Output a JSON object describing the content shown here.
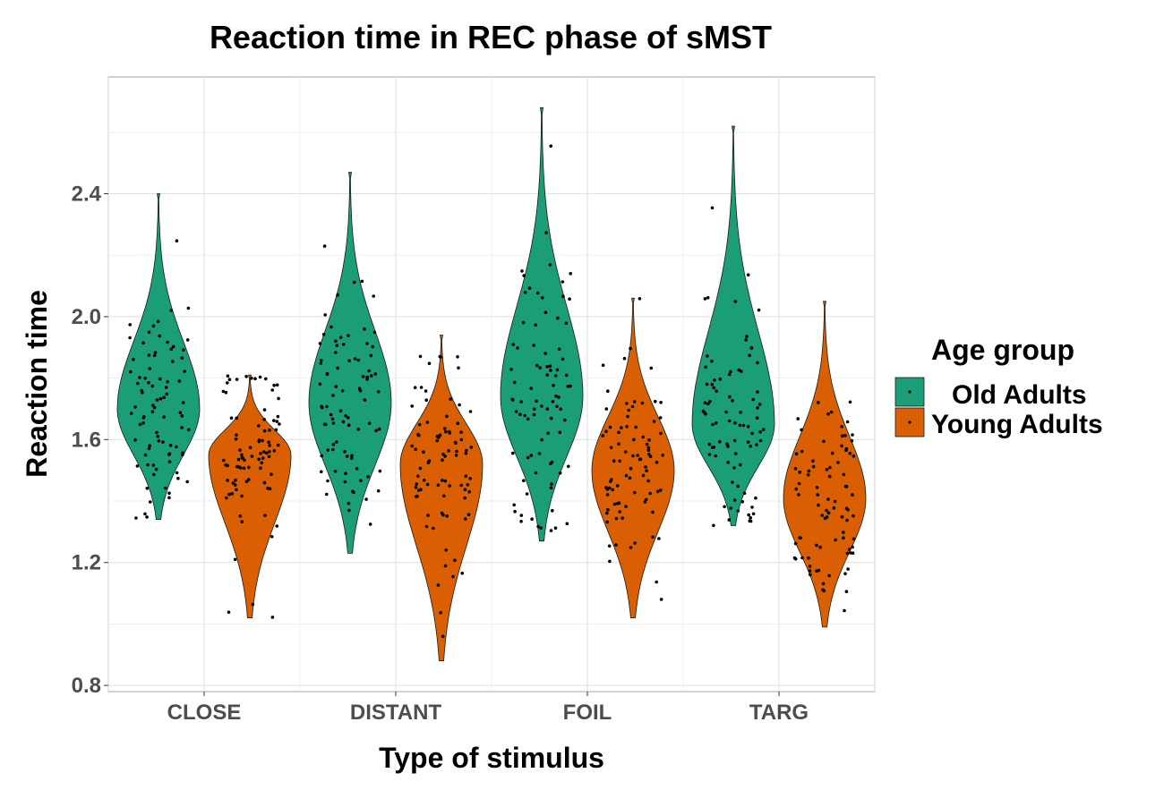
{
  "chart_data": {
    "type": "violin",
    "title": "Reaction time in REC phase of sMST",
    "xlabel": "Type of stimulus",
    "ylabel": "Reaction time",
    "categories": [
      "CLOSE",
      "DISTANT",
      "FOIL",
      "TARG"
    ],
    "ylim": [
      0.78,
      2.78
    ],
    "yticks": [
      0.8,
      1.2,
      1.6,
      2.0,
      2.4
    ],
    "ytick_labels": [
      "0.8",
      "1.2",
      "1.6",
      "2.0",
      "2.4"
    ],
    "grid": true,
    "legend": {
      "title": "Age group",
      "position": "right",
      "entries": [
        "Old Adults",
        "Young Adults"
      ]
    },
    "series": [
      {
        "name": "Old Adults",
        "color": "#1b9e77",
        "violins": [
          {
            "category": "CLOSE",
            "min": 1.34,
            "max": 2.4,
            "median": 1.7
          },
          {
            "category": "DISTANT",
            "min": 1.23,
            "max": 2.47,
            "median": 1.72
          },
          {
            "category": "FOIL",
            "min": 1.27,
            "max": 2.68,
            "median": 1.74
          },
          {
            "category": "TARG",
            "min": 1.32,
            "max": 2.62,
            "median": 1.65
          }
        ]
      },
      {
        "name": "Young Adults",
        "color": "#d95f02",
        "violins": [
          {
            "category": "CLOSE",
            "min": 1.02,
            "max": 1.81,
            "median": 1.55
          },
          {
            "category": "DISTANT",
            "min": 0.88,
            "max": 1.94,
            "median": 1.52
          },
          {
            "category": "FOIL",
            "min": 1.02,
            "max": 2.06,
            "median": 1.5
          },
          {
            "category": "TARG",
            "min": 0.99,
            "max": 2.05,
            "median": 1.41
          }
        ]
      }
    ]
  }
}
